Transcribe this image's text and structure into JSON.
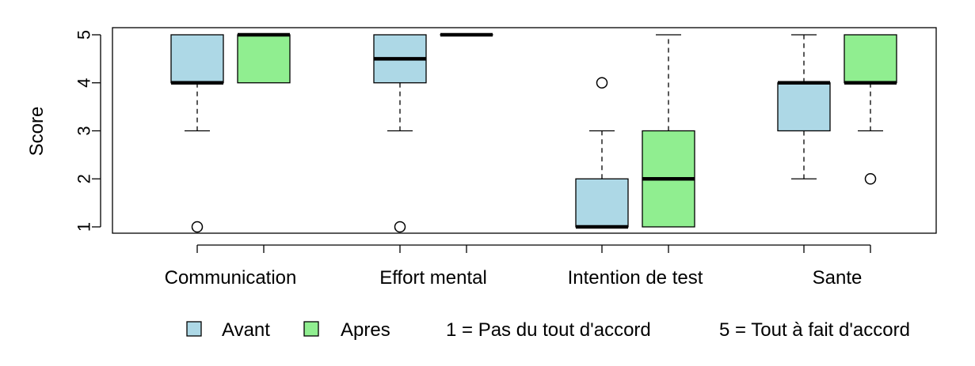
{
  "chart_data": {
    "type": "boxplot",
    "ylabel": "Score",
    "ylim": [
      1,
      5
    ],
    "yticks": [
      "1",
      "2",
      "3",
      "4",
      "5"
    ],
    "categories": [
      "Communication",
      "Effort mental",
      "Intention de test",
      "Sante"
    ],
    "series": [
      {
        "name": "Avant",
        "color": "#add8e6",
        "boxes": [
          {
            "q1": 4,
            "median": 4,
            "q3": 5,
            "whisker_low": 3,
            "whisker_high": 5,
            "outliers": [
              1
            ]
          },
          {
            "q1": 4,
            "median": 4.5,
            "q3": 5,
            "whisker_low": 3,
            "whisker_high": 5,
            "outliers": [
              1
            ]
          },
          {
            "q1": 1,
            "median": 1,
            "q3": 2,
            "whisker_low": 1,
            "whisker_high": 3,
            "outliers": [
              4
            ]
          },
          {
            "q1": 3,
            "median": 4,
            "q3": 4,
            "whisker_low": 2,
            "whisker_high": 5,
            "outliers": []
          }
        ]
      },
      {
        "name": "Apres",
        "color": "#90ee90",
        "boxes": [
          {
            "q1": 4,
            "median": 5,
            "q3": 5,
            "whisker_low": 4,
            "whisker_high": 5,
            "outliers": []
          },
          {
            "q1": 5,
            "median": 5,
            "q3": 5,
            "whisker_low": 5,
            "whisker_high": 5,
            "outliers": []
          },
          {
            "q1": 1,
            "median": 2,
            "q3": 3,
            "whisker_low": 1,
            "whisker_high": 5,
            "outliers": []
          },
          {
            "q1": 4,
            "median": 4,
            "q3": 5,
            "whisker_low": 3,
            "whisker_high": 5,
            "outliers": [
              2
            ]
          }
        ]
      }
    ],
    "legend": {
      "placement": "bottom",
      "note_low": "1 = Pas du tout d'accord",
      "note_high": "5 = Tout à fait d'accord"
    }
  }
}
